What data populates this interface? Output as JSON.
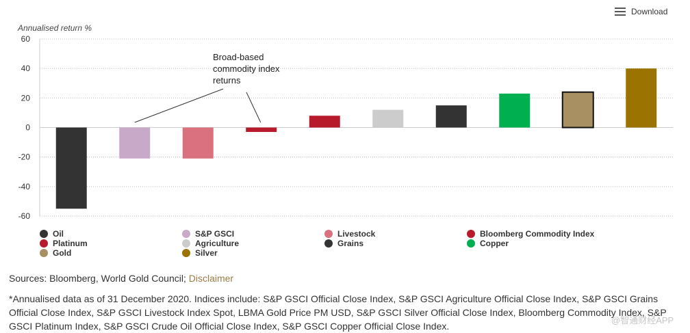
{
  "download_label": "Download",
  "chart_data": {
    "type": "bar",
    "ylabel": "Annualised return %",
    "xlabel": "",
    "ylim": [
      -60,
      60
    ],
    "yticks": [
      60,
      40,
      20,
      0,
      -20,
      -40,
      -60
    ],
    "grid": true,
    "categories": [
      "Oil",
      "S&P GSCI",
      "Livestock",
      "Bloomberg Commodity Index",
      "Platinum",
      "Agriculture",
      "Grains",
      "Copper",
      "Gold",
      "Silver"
    ],
    "bars": [
      {
        "name": "Oil",
        "value": -55,
        "color": "#333333"
      },
      {
        "name": "S&P GSCI",
        "value": -21,
        "color": "#c8aac8"
      },
      {
        "name": "Livestock",
        "value": -21,
        "color": "#d9727e"
      },
      {
        "name": "Bloomberg Commodity Index",
        "value": -3,
        "color": "#b71b2b"
      },
      {
        "name": "Platinum",
        "value": 8,
        "color": "#b71b2b"
      },
      {
        "name": "Agriculture",
        "value": 12,
        "color": "#cccccc"
      },
      {
        "name": "Grains",
        "value": 15,
        "color": "#333333"
      },
      {
        "name": "Copper",
        "value": 23,
        "color": "#00b050"
      },
      {
        "name": "Gold",
        "value": 24,
        "color": "#a99063",
        "outlined": true
      },
      {
        "name": "Silver",
        "value": 40,
        "color": "#9a7300"
      }
    ],
    "annotation": "Broad-based commodity index returns",
    "annotation_lines": [
      "Broad-based",
      "commodity index",
      "returns"
    ]
  },
  "legend": [
    {
      "label": "Oil",
      "color": "#333333"
    },
    {
      "label": "S&P GSCI",
      "color": "#c8aac8"
    },
    {
      "label": "Livestock",
      "color": "#d9727e"
    },
    {
      "label": "Bloomberg Commodity Index",
      "color": "#b71b2b"
    },
    {
      "label": "Platinum",
      "color": "#b71b2b"
    },
    {
      "label": "Agriculture",
      "color": "#cccccc"
    },
    {
      "label": "Grains",
      "color": "#333333"
    },
    {
      "label": "Copper",
      "color": "#00b050"
    },
    {
      "label": "Gold",
      "color": "#a99063"
    },
    {
      "label": "Silver",
      "color": "#9a7300"
    }
  ],
  "sources": {
    "prefix": "Sources: Bloomberg, World Gold Council; ",
    "disclaimer": "Disclaimer"
  },
  "footnote": "*Annualised data as of 31 December 2020. Indices include: S&P GSCI Official Close Index, S&P GSCI Agriculture Official Close Index, S&P GSCI Grains Official Close Index, S&P GSCI Livestock Index Spot, LBMA Gold Price PM USD, S&P GSCI Silver Official Close Index, Bloomberg Commodity Index, S&P GSCI Platinum Index, S&P GSCI Crude Oil Official Close Index, S&P GSCI Copper Official Close Index.",
  "watermark": "@智通财经APP"
}
